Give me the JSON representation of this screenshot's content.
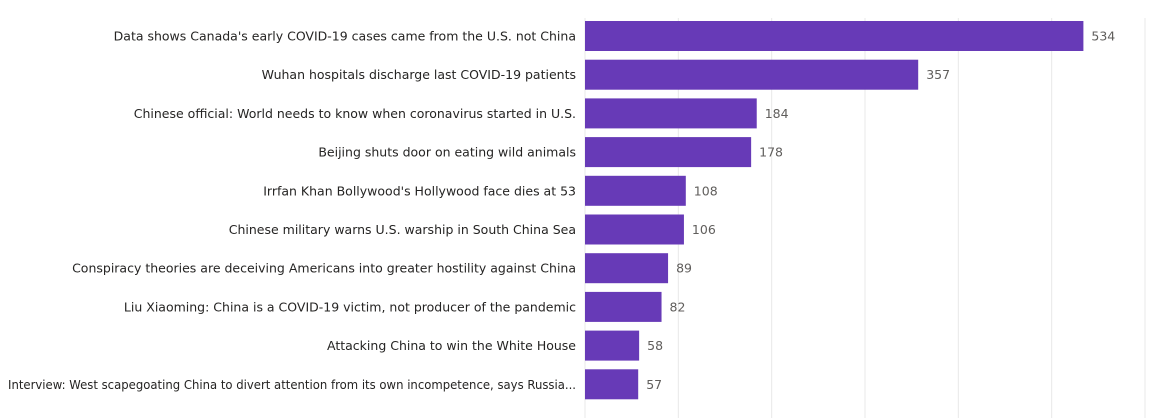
{
  "chart_data": {
    "type": "bar",
    "orientation": "horizontal",
    "categories": [
      "Data shows Canada's early COVID-19 cases came from the U.S. not China",
      "Wuhan hospitals discharge last COVID-19 patients",
      "Chinese official: World needs to know when coronavirus started in U.S.",
      "Beijing shuts door on eating wild animals",
      "Irrfan Khan Bollywood's Hollywood face dies at 53",
      "Chinese military warns U.S. warship in South China Sea",
      "Conspiracy theories are deceiving Americans into greater hostility against China",
      "Liu Xiaoming: China is a COVID-19 victim, not producer of the pandemic",
      "Attacking China to win the White House",
      "Interview: West scapegoating China to divert attention from its own incompetence, says Russia..."
    ],
    "values": [
      534,
      357,
      184,
      178,
      108,
      106,
      89,
      82,
      58,
      57
    ],
    "title": "",
    "xlabel": "",
    "ylabel": "",
    "xlim": [
      0,
      600
    ],
    "grid": true,
    "bar_color": "#673ab7",
    "data_labels": true
  }
}
